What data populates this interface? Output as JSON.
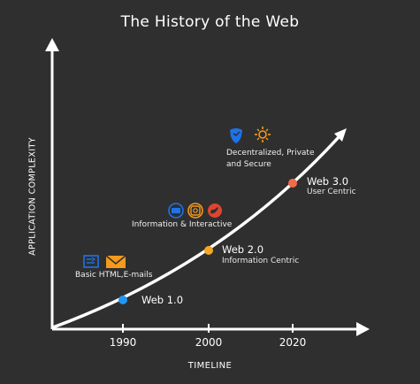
{
  "title": "The History of the Web",
  "y_axis_label": "APPLICATION COMPLEXITY",
  "x_axis_label": "TIMELINE",
  "ticks": [
    "1990",
    "2000",
    "2020"
  ],
  "eras": [
    {
      "name": "Web 1.0",
      "subtitle": "",
      "color": "#2196f3",
      "feature": "Basic HTML,E-mails",
      "icons": [
        "html-icon",
        "email-icon"
      ]
    },
    {
      "name": "Web 2.0",
      "subtitle": "Information Centric",
      "color": "#f5a623",
      "feature": "Information & Interactive",
      "icons": [
        "facebook-icon",
        "instagram-icon",
        "twitter-icon"
      ]
    },
    {
      "name": "Web 3.0",
      "subtitle": "User Centric",
      "color": "#f26b4a",
      "feature_lines": [
        "Decentralized, Private",
        "and Secure"
      ],
      "icons": [
        "shield-icon",
        "network-icon"
      ]
    }
  ],
  "colors": {
    "background": "#2f2f2f",
    "axis": "#ffffff",
    "curve": "#ffffff",
    "blue": "#1e73e8",
    "orange": "#f59a1b",
    "red": "#e0442e"
  }
}
